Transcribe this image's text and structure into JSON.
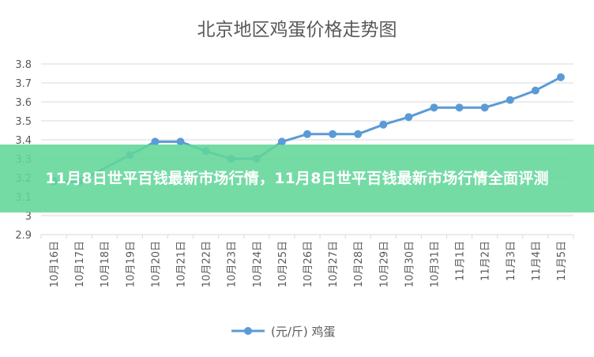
{
  "banner": {
    "text": "11月8日世平百钱最新市场行情，11月8日世平百钱最新市场行情全面评测"
  },
  "colors": {
    "series": "#5b9bd5",
    "grid": "#d9d9d9",
    "banner": "#62d698",
    "text": "#595959"
  },
  "chart_data": {
    "type": "line",
    "title": "北京地区鸡蛋价格走势图",
    "xlabel": "",
    "ylabel": "",
    "categories": [
      "10月16日",
      "10月17日",
      "10月18日",
      "10月19日",
      "10月20日",
      "10月21日",
      "10月22日",
      "10月23日",
      "10月24日",
      "10月25日",
      "10月26日",
      "10月27日",
      "10月28日",
      "10月29日",
      "10月30日",
      "10月31日",
      "11月1日",
      "11月2日",
      "11月3日",
      "11月4日",
      "11月5日"
    ],
    "series": [
      {
        "name": "(元/斤) 鸡蛋",
        "values": [
          3.18,
          3.18,
          null,
          3.32,
          3.39,
          3.39,
          3.34,
          3.3,
          3.3,
          3.39,
          3.43,
          3.43,
          3.43,
          3.48,
          3.52,
          3.57,
          3.57,
          3.57,
          3.61,
          3.66,
          3.73
        ]
      }
    ],
    "ylim": [
      2.9,
      3.8
    ],
    "yticks": [
      "2.9",
      "3",
      "3.1",
      "3.2",
      "3.3",
      "3.4",
      "3.5",
      "3.6",
      "3.7",
      "3.8"
    ],
    "grid": true,
    "legend": "bottom"
  }
}
